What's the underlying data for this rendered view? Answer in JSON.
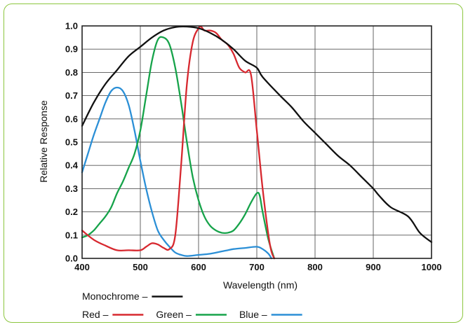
{
  "chart_data": {
    "type": "line",
    "xlabel": "Wavelength (nm)",
    "ylabel": "Relative Response",
    "xlim": [
      400,
      1000
    ],
    "ylim": [
      0.0,
      1.0
    ],
    "xticks": [
      "400",
      "500",
      "600",
      "700",
      "800",
      "900",
      "1000"
    ],
    "yticks": [
      "0.0",
      "0.1",
      "0.2",
      "0.3",
      "0.4",
      "0.5",
      "0.6",
      "0.7",
      "0.8",
      "0.9",
      "1.0"
    ],
    "grid": true,
    "legend_placement": "bottom-left",
    "series": [
      {
        "name": "Monochrome",
        "color": "#111111",
        "x": [
          400,
          420,
          440,
          460,
          480,
          500,
          520,
          540,
          560,
          580,
          600,
          620,
          640,
          660,
          680,
          700,
          710,
          740,
          760,
          780,
          800,
          820,
          840,
          860,
          880,
          900,
          910,
          930,
          960,
          980,
          1000
        ],
        "y": [
          0.57,
          0.67,
          0.75,
          0.81,
          0.87,
          0.91,
          0.95,
          0.98,
          0.995,
          0.997,
          0.99,
          0.97,
          0.94,
          0.9,
          0.85,
          0.82,
          0.78,
          0.7,
          0.65,
          0.59,
          0.54,
          0.49,
          0.44,
          0.4,
          0.35,
          0.3,
          0.27,
          0.22,
          0.18,
          0.11,
          0.07
        ]
      },
      {
        "name": "Red",
        "color": "#d7282f",
        "x": [
          400,
          420,
          440,
          460,
          480,
          500,
          510,
          520,
          530,
          540,
          550,
          560,
          570,
          580,
          590,
          600,
          605,
          610,
          620,
          630,
          640,
          650,
          660,
          670,
          680,
          690,
          700,
          710,
          720,
          725,
          730
        ],
        "y": [
          0.12,
          0.08,
          0.055,
          0.035,
          0.035,
          0.035,
          0.05,
          0.065,
          0.06,
          0.045,
          0.04,
          0.1,
          0.4,
          0.75,
          0.93,
          0.99,
          0.995,
          0.98,
          0.98,
          0.97,
          0.94,
          0.92,
          0.88,
          0.82,
          0.8,
          0.79,
          0.55,
          0.3,
          0.1,
          0.03,
          0.0
        ]
      },
      {
        "name": "Green",
        "color": "#16a34a",
        "x": [
          400,
          410,
          420,
          430,
          440,
          450,
          460,
          470,
          480,
          490,
          500,
          510,
          520,
          530,
          540,
          550,
          560,
          570,
          580,
          590,
          600,
          610,
          620,
          630,
          640,
          650,
          660,
          670,
          680,
          690,
          700,
          705,
          710,
          720,
          730
        ],
        "y": [
          0.09,
          0.1,
          0.12,
          0.15,
          0.18,
          0.22,
          0.28,
          0.33,
          0.39,
          0.45,
          0.55,
          0.7,
          0.85,
          0.94,
          0.95,
          0.92,
          0.82,
          0.67,
          0.5,
          0.35,
          0.25,
          0.18,
          0.14,
          0.12,
          0.11,
          0.11,
          0.12,
          0.15,
          0.19,
          0.24,
          0.28,
          0.27,
          0.2,
          0.08,
          0.0
        ]
      },
      {
        "name": "Blue",
        "color": "#2b8fd6",
        "x": [
          400,
          410,
          420,
          430,
          440,
          450,
          460,
          470,
          480,
          490,
          500,
          510,
          520,
          530,
          540,
          550,
          560,
          570,
          580,
          600,
          620,
          640,
          650,
          660,
          680,
          700,
          710,
          720,
          725
        ],
        "y": [
          0.37,
          0.45,
          0.53,
          0.6,
          0.67,
          0.72,
          0.735,
          0.72,
          0.66,
          0.55,
          0.42,
          0.3,
          0.2,
          0.12,
          0.08,
          0.05,
          0.025,
          0.015,
          0.01,
          0.015,
          0.02,
          0.03,
          0.035,
          0.04,
          0.045,
          0.05,
          0.04,
          0.02,
          0.0
        ]
      }
    ]
  },
  "legend": {
    "row1": [
      {
        "label": "Monochrome –",
        "color": "#111111"
      }
    ],
    "row2": [
      {
        "label": "Red –",
        "color": "#d7282f"
      },
      {
        "label": "Green –",
        "color": "#16a34a"
      },
      {
        "label": "Blue –",
        "color": "#2b8fd6"
      }
    ]
  }
}
